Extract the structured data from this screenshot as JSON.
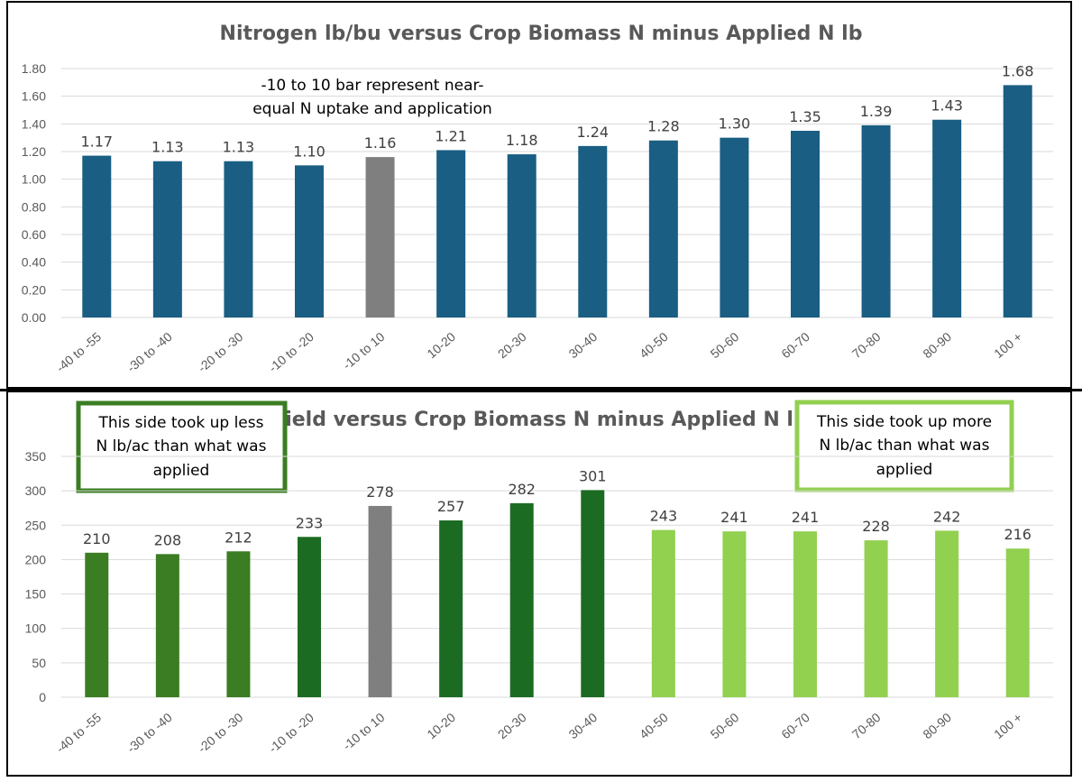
{
  "chart_data": [
    {
      "type": "bar",
      "title": "Nitrogen lb/bu versus Crop Biomass N minus Applied N lb",
      "categories": [
        "-40 to -55",
        "-30 to -40",
        "-20 to -30",
        "-10 to -20",
        "-10 to 10",
        "10-20",
        "20-30",
        "30-40",
        "40-50",
        "50-60",
        "60-70",
        "70-80",
        "80-90",
        "100 +"
      ],
      "values": [
        1.17,
        1.13,
        1.13,
        1.1,
        1.16,
        1.21,
        1.18,
        1.24,
        1.28,
        1.3,
        1.35,
        1.39,
        1.43,
        1.68
      ],
      "value_labels": [
        "1.17",
        "1.13",
        "1.13",
        "1.10",
        "1.16",
        "1.21",
        "1.18",
        "1.24",
        "1.28",
        "1.30",
        "1.35",
        "1.39",
        "1.43",
        "1.68"
      ],
      "bar_colors": [
        "#1a5e83",
        "#1a5e83",
        "#1a5e83",
        "#1a5e83",
        "#7f7f7f",
        "#1a5e83",
        "#1a5e83",
        "#1a5e83",
        "#1a5e83",
        "#1a5e83",
        "#1a5e83",
        "#1a5e83",
        "#1a5e83",
        "#1a5e83"
      ],
      "ylim": [
        0,
        1.8
      ],
      "yticks": [
        "0.00",
        "0.20",
        "0.40",
        "0.60",
        "0.80",
        "1.00",
        "1.20",
        "1.40",
        "1.60",
        "1.80"
      ],
      "grid": true,
      "annotations": [
        "-10 to 10 bar represent near-",
        "equal N uptake and application"
      ]
    },
    {
      "type": "bar",
      "title": "Yield versus Crop Biomass N minus Applied N lb",
      "categories": [
        "-40 to -55",
        "-30 to -40",
        "-20 to -30",
        "-10 to -20",
        "-10 to 10",
        "10-20",
        "20-30",
        "30-40",
        "40-50",
        "50-60",
        "60-70",
        "70-80",
        "80-90",
        "100 +"
      ],
      "values": [
        210,
        208,
        212,
        233,
        278,
        257,
        282,
        301,
        243,
        241,
        241,
        228,
        242,
        216
      ],
      "value_labels": [
        "210",
        "208",
        "212",
        "233",
        "278",
        "257",
        "282",
        "301",
        "243",
        "241",
        "241",
        "228",
        "242",
        "216"
      ],
      "bar_colors": [
        "#3a7d22",
        "#3a7d22",
        "#3a7d22",
        "#1c6b23",
        "#7f7f7f",
        "#1c6b23",
        "#1c6b23",
        "#1c6b23",
        "#92d050",
        "#92d050",
        "#92d050",
        "#92d050",
        "#92d050",
        "#92d050"
      ],
      "ylim": [
        0,
        350
      ],
      "yticks": [
        "0",
        "50",
        "100",
        "150",
        "200",
        "250",
        "300",
        "350"
      ],
      "grid": true,
      "annotations": [
        {
          "lines": [
            "This side took up less",
            "N lb/ac than what was",
            "applied"
          ],
          "border_color": "#3a7d22"
        },
        {
          "lines": [
            "This side took up more",
            "N lb/ac than what was",
            "applied"
          ],
          "border_color": "#92d050"
        }
      ]
    }
  ]
}
